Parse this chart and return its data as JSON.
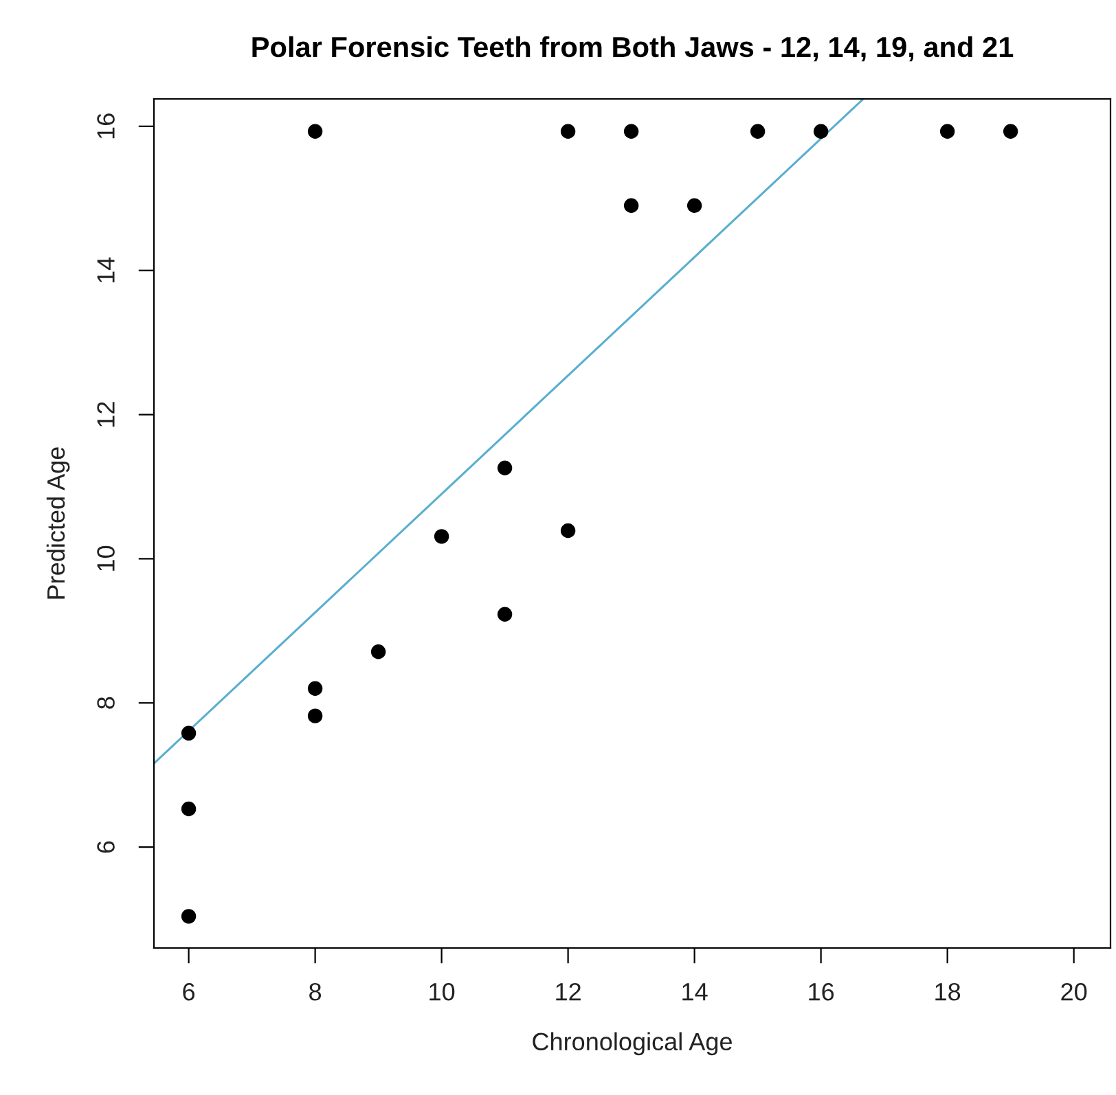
{
  "chart_data": {
    "type": "scatter",
    "title": "Polar Forensic Teeth from Both Jaws - 12, 14, 19, and 21",
    "xlabel": "Chronological Age",
    "ylabel": "Predicted Age",
    "xlim": [
      5.45,
      20.58
    ],
    "ylim": [
      4.6,
      16.38
    ],
    "xticks": [
      6,
      8,
      10,
      12,
      14,
      16,
      18,
      20
    ],
    "yticks": [
      6,
      8,
      10,
      12,
      14,
      16
    ],
    "grid": false,
    "legend": false,
    "series": [
      {
        "color": "#000000",
        "marker": "circle",
        "x": [
          6,
          6,
          6,
          8,
          8,
          8,
          9,
          10,
          11,
          11,
          12,
          12,
          13,
          13,
          14,
          15,
          16,
          18,
          19
        ],
        "values": [
          7.58,
          6.53,
          5.04,
          15.93,
          8.2,
          7.82,
          8.71,
          10.31,
          11.26,
          9.23,
          15.93,
          10.39,
          15.93,
          14.9,
          14.9,
          15.93,
          15.93,
          15.93,
          15.93
        ]
      },
      {
        "type": "line",
        "color": "#5aaed0",
        "marker": "none",
        "line_style": "solid",
        "x": [
          5.45,
          16.67
        ],
        "values": [
          7.16,
          16.38
        ]
      }
    ]
  }
}
